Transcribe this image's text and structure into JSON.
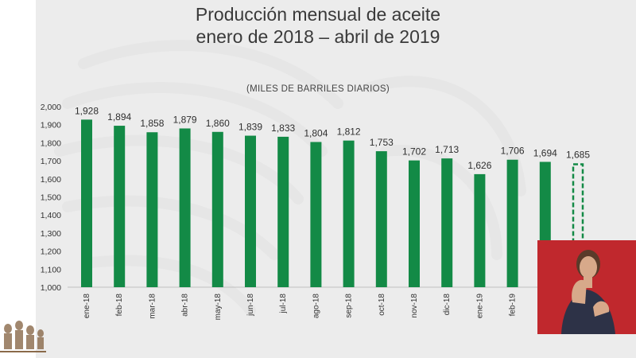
{
  "slide": {
    "title_line1": "Producción mensual de aceite",
    "title_line2": "enero de 2018 – abril de 2019",
    "subtitle": "(MILES DE BARRILES DIARIOS)"
  },
  "colors": {
    "bar": "#138a46",
    "background": "#ececec",
    "interpreter_bg": "#c0282d"
  },
  "chart_data": {
    "type": "bar",
    "title": "Producción mensual de aceite enero de 2018 – abril de 2019",
    "ylabel": "(MILES DE BARRILES DIARIOS)",
    "categories": [
      "ene-18",
      "feb-18",
      "mar-18",
      "abr-18",
      "may-18",
      "jun-18",
      "jul-18",
      "ago-18",
      "sep-18",
      "oct-18",
      "nov-18",
      "dic-18",
      "ene-19",
      "feb-19",
      "",
      ""
    ],
    "values": [
      1928,
      1894,
      1858,
      1879,
      1860,
      1839,
      1833,
      1804,
      1812,
      1753,
      1702,
      1713,
      1626,
      1706,
      1694,
      1685
    ],
    "value_labels": [
      "1,928",
      "1,894",
      "1,858",
      "1,879",
      "1,860",
      "1,839",
      "1,833",
      "1,804",
      "1,812",
      "1,753",
      "1,702",
      "1,713",
      "1,626",
      "1,706",
      "1,694",
      "1,685"
    ],
    "dashed_last_bar": true,
    "ylim": [
      1000,
      2000
    ],
    "yticks": [
      "1,000",
      "1,100",
      "1,200",
      "1,300",
      "1,400",
      "1,500",
      "1,600",
      "1,700",
      "1,800",
      "1,900",
      "2,000"
    ],
    "grid": false,
    "legend": "none"
  }
}
